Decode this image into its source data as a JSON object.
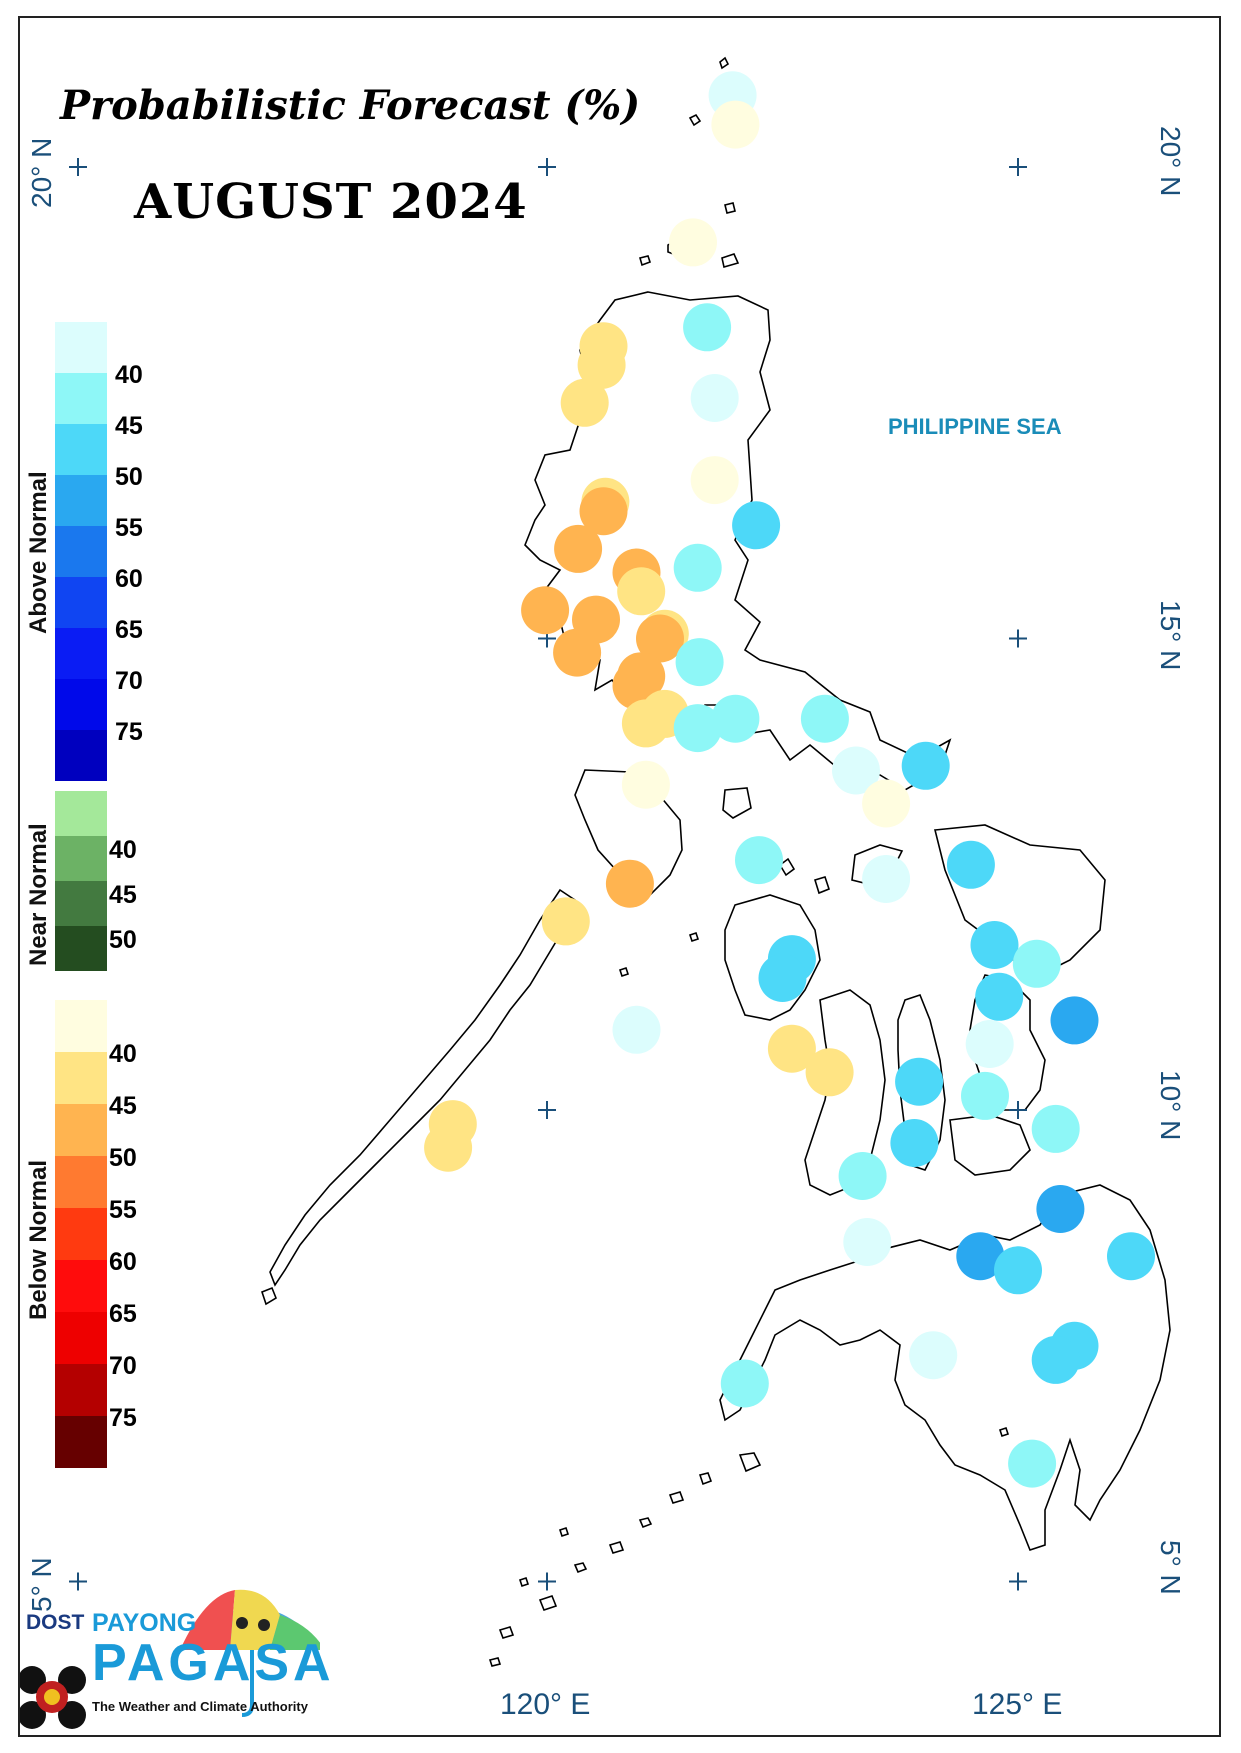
{
  "map": {
    "title": "Probabilistic Forecast (%)",
    "subtitle": "AUGUST 2024",
    "sea_label": "PHILIPPINE SEA",
    "lat_labels": [
      "20° N",
      "15° N",
      "10° N",
      "5° N"
    ],
    "lon_labels": [
      "120° E",
      "125° E"
    ]
  },
  "legend": {
    "above_normal": {
      "title": "Above Normal",
      "ticks": [
        "40",
        "45",
        "50",
        "55",
        "60",
        "65",
        "70",
        "75"
      ],
      "colors": [
        "#dcfdfd",
        "#8ef7f7",
        "#4dd8f8",
        "#2aa8f0",
        "#1a78ee",
        "#1045f2",
        "#0a1cf4",
        "#0009ea",
        "#0000bf"
      ]
    },
    "near_normal": {
      "title": "Near Normal",
      "ticks": [
        "40",
        "45",
        "50"
      ],
      "colors": [
        "#a4e89a",
        "#6cb265",
        "#437a40",
        "#244d20"
      ]
    },
    "below_normal": {
      "title": "Below Normal",
      "ticks": [
        "40",
        "45",
        "50",
        "55",
        "60",
        "65",
        "70",
        "75"
      ],
      "colors": [
        "#fffde0",
        "#ffe484",
        "#ffb450",
        "#ff7a30",
        "#ff3a10",
        "#ff0c0c",
        "#ee0000",
        "#b40000",
        "#660000"
      ]
    }
  },
  "stations": [
    {
      "lon": 121.97,
      "lat": 20.76,
      "category": "above",
      "bin": 0
    },
    {
      "lon": 122.0,
      "lat": 20.45,
      "category": "below",
      "bin": 0
    },
    {
      "lon": 121.55,
      "lat": 19.2,
      "category": "below",
      "bin": 0
    },
    {
      "lon": 121.7,
      "lat": 18.3,
      "category": "above",
      "bin": 1
    },
    {
      "lon": 120.6,
      "lat": 18.1,
      "category": "below",
      "bin": 1
    },
    {
      "lon": 120.58,
      "lat": 17.9,
      "category": "below",
      "bin": 1
    },
    {
      "lon": 121.78,
      "lat": 17.55,
      "category": "above",
      "bin": 0
    },
    {
      "lon": 120.4,
      "lat": 17.5,
      "category": "below",
      "bin": 1
    },
    {
      "lon": 121.78,
      "lat": 16.68,
      "category": "below",
      "bin": 0
    },
    {
      "lon": 120.62,
      "lat": 16.45,
      "category": "below",
      "bin": 1
    },
    {
      "lon": 120.6,
      "lat": 16.35,
      "category": "below",
      "bin": 2
    },
    {
      "lon": 122.22,
      "lat": 16.2,
      "category": "above",
      "bin": 2
    },
    {
      "lon": 120.33,
      "lat": 15.95,
      "category": "below",
      "bin": 2
    },
    {
      "lon": 121.6,
      "lat": 15.75,
      "category": "above",
      "bin": 1
    },
    {
      "lon": 120.95,
      "lat": 15.7,
      "category": "below",
      "bin": 2
    },
    {
      "lon": 121.0,
      "lat": 15.5,
      "category": "below",
      "bin": 1
    },
    {
      "lon": 119.98,
      "lat": 15.3,
      "category": "below",
      "bin": 2
    },
    {
      "lon": 120.52,
      "lat": 15.2,
      "category": "below",
      "bin": 2
    },
    {
      "lon": 121.25,
      "lat": 15.05,
      "category": "below",
      "bin": 1
    },
    {
      "lon": 121.2,
      "lat": 15.0,
      "category": "below",
      "bin": 2
    },
    {
      "lon": 120.32,
      "lat": 14.85,
      "category": "below",
      "bin": 2
    },
    {
      "lon": 121.62,
      "lat": 14.75,
      "category": "above",
      "bin": 1
    },
    {
      "lon": 121.0,
      "lat": 14.6,
      "category": "below",
      "bin": 2
    },
    {
      "lon": 120.95,
      "lat": 14.5,
      "category": "below",
      "bin": 2
    },
    {
      "lon": 121.25,
      "lat": 14.2,
      "category": "below",
      "bin": 1
    },
    {
      "lon": 121.05,
      "lat": 14.1,
      "category": "below",
      "bin": 1
    },
    {
      "lon": 121.6,
      "lat": 14.05,
      "category": "above",
      "bin": 1
    },
    {
      "lon": 122.0,
      "lat": 14.15,
      "category": "above",
      "bin": 1
    },
    {
      "lon": 122.95,
      "lat": 14.15,
      "category": "above",
      "bin": 1
    },
    {
      "lon": 123.28,
      "lat": 13.6,
      "category": "above",
      "bin": 0
    },
    {
      "lon": 124.02,
      "lat": 13.65,
      "category": "above",
      "bin": 2
    },
    {
      "lon": 123.6,
      "lat": 13.25,
      "category": "below",
      "bin": 0
    },
    {
      "lon": 121.05,
      "lat": 13.45,
      "category": "below",
      "bin": 0
    },
    {
      "lon": 122.25,
      "lat": 12.65,
      "category": "above",
      "bin": 1
    },
    {
      "lon": 123.6,
      "lat": 12.45,
      "category": "above",
      "bin": 0
    },
    {
      "lon": 124.5,
      "lat": 12.6,
      "category": "above",
      "bin": 2
    },
    {
      "lon": 120.88,
      "lat": 12.4,
      "category": "below",
      "bin": 2
    },
    {
      "lon": 120.2,
      "lat": 12.0,
      "category": "below",
      "bin": 1
    },
    {
      "lon": 124.75,
      "lat": 11.75,
      "category": "above",
      "bin": 2
    },
    {
      "lon": 125.2,
      "lat": 11.55,
      "category": "above",
      "bin": 1
    },
    {
      "lon": 122.6,
      "lat": 11.6,
      "category": "above",
      "bin": 2
    },
    {
      "lon": 122.5,
      "lat": 11.4,
      "category": "above",
      "bin": 2
    },
    {
      "lon": 124.8,
      "lat": 11.2,
      "category": "above",
      "bin": 2
    },
    {
      "lon": 125.6,
      "lat": 10.95,
      "category": "above",
      "bin": 3
    },
    {
      "lon": 120.95,
      "lat": 10.85,
      "category": "above",
      "bin": 0
    },
    {
      "lon": 124.7,
      "lat": 10.7,
      "category": "above",
      "bin": 0
    },
    {
      "lon": 122.6,
      "lat": 10.65,
      "category": "below",
      "bin": 1
    },
    {
      "lon": 123.0,
      "lat": 10.4,
      "category": "below",
      "bin": 1
    },
    {
      "lon": 123.95,
      "lat": 10.3,
      "category": "above",
      "bin": 2
    },
    {
      "lon": 124.65,
      "lat": 10.15,
      "category": "above",
      "bin": 1
    },
    {
      "lon": 119.0,
      "lat": 9.85,
      "category": "below",
      "bin": 1
    },
    {
      "lon": 118.95,
      "lat": 9.6,
      "category": "below",
      "bin": 1
    },
    {
      "lon": 125.4,
      "lat": 9.8,
      "category": "above",
      "bin": 1
    },
    {
      "lon": 123.9,
      "lat": 9.65,
      "category": "above",
      "bin": 2
    },
    {
      "lon": 123.35,
      "lat": 9.3,
      "category": "above",
      "bin": 1
    },
    {
      "lon": 125.45,
      "lat": 8.95,
      "category": "above",
      "bin": 3
    },
    {
      "lon": 123.4,
      "lat": 8.6,
      "category": "above",
      "bin": 0
    },
    {
      "lon": 124.6,
      "lat": 8.45,
      "category": "above",
      "bin": 3
    },
    {
      "lon": 126.2,
      "lat": 8.45,
      "category": "above",
      "bin": 2
    },
    {
      "lon": 125.0,
      "lat": 8.3,
      "category": "above",
      "bin": 2
    },
    {
      "lon": 125.6,
      "lat": 7.5,
      "category": "above",
      "bin": 2
    },
    {
      "lon": 125.4,
      "lat": 7.35,
      "category": "above",
      "bin": 2
    },
    {
      "lon": 124.1,
      "lat": 7.4,
      "category": "above",
      "bin": 0
    },
    {
      "lon": 122.1,
      "lat": 7.1,
      "category": "above",
      "bin": 1
    },
    {
      "lon": 125.15,
      "lat": 6.25,
      "category": "above",
      "bin": 1
    }
  ],
  "branding": {
    "dost": "DOST",
    "payong": "PAYONG",
    "pagasa": "PAGASA",
    "tagline": "The Weather and Climate Authority"
  }
}
